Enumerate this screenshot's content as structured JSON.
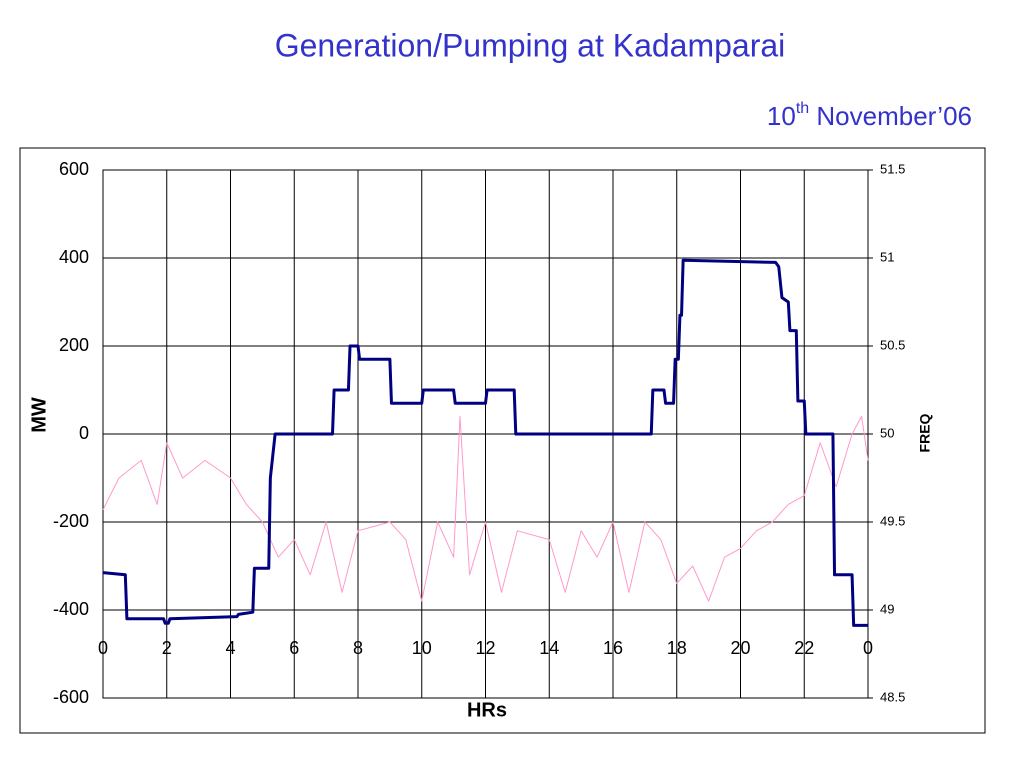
{
  "chart_data": {
    "type": "line",
    "title": "Generation/Pumping at Kadamparai",
    "subtitle": [
      "10",
      "th",
      " November’06"
    ],
    "xlabel": "HRs",
    "ylabel": "MW",
    "y2label": "FREQ",
    "xlim": [
      0,
      24
    ],
    "xticks": [
      0,
      2,
      4,
      6,
      8,
      10,
      12,
      14,
      16,
      18,
      20,
      22,
      {
        "value": 24,
        "label": "0"
      }
    ],
    "ylim": [
      -600,
      600
    ],
    "yticks": [
      -600,
      -400,
      -200,
      0,
      200,
      400,
      600
    ],
    "y2lim": [
      48.5,
      51.5
    ],
    "y2ticks": [
      48.5,
      49,
      49.5,
      50,
      50.5,
      51,
      51.5
    ],
    "grid": true,
    "series": [
      {
        "color": "#000080",
        "x": [
          0,
          0.7,
          0.75,
          1.9,
          1.95,
          2.05,
          2.1,
          4.2,
          4.25,
          4.7,
          4.75,
          5.2,
          5.25,
          5.4,
          7.2,
          7.25,
          7.7,
          7.75,
          8.0,
          8.05,
          9.0,
          9.05,
          10.0,
          10.05,
          11.0,
          11.05,
          12.0,
          12.05,
          12.9,
          12.95,
          17.2,
          17.25,
          17.6,
          17.65,
          17.9,
          17.95,
          18.05,
          18.1,
          18.15,
          18.2,
          21.1,
          21.2,
          21.3,
          21.5,
          21.55,
          21.75,
          21.8,
          22.0,
          22.05,
          22.9,
          22.95,
          23.5,
          23.55,
          24
        ],
        "values": [
          -315,
          -320,
          -420,
          -420,
          -430,
          -430,
          -420,
          -415,
          -410,
          -405,
          -305,
          -305,
          -100,
          0,
          0,
          100,
          100,
          200,
          200,
          170,
          170,
          70,
          70,
          100,
          100,
          70,
          70,
          100,
          100,
          0,
          0,
          100,
          100,
          70,
          70,
          170,
          170,
          270,
          270,
          395,
          390,
          380,
          310,
          300,
          235,
          235,
          75,
          75,
          0,
          0,
          -320,
          -320,
          -435,
          -435
        ]
      },
      {
        "color": "#ff99cc",
        "axis": "y2",
        "x": [
          0,
          0.5,
          1.2,
          1.7,
          2.0,
          2.5,
          3.2,
          4,
          4.5,
          5,
          5.5,
          6,
          6.5,
          7,
          7.5,
          8,
          9,
          9.5,
          10,
          10.5,
          11,
          11.2,
          11.5,
          12,
          12.5,
          13,
          14,
          14.5,
          15,
          15.5,
          16,
          16.5,
          17,
          17.5,
          18,
          18.5,
          19,
          19.5,
          20,
          20.5,
          21,
          21.5,
          22,
          22.5,
          23,
          23.5,
          23.8,
          24
        ],
        "values": [
          49.57,
          49.75,
          49.85,
          49.6,
          49.95,
          49.75,
          49.85,
          49.75,
          49.6,
          49.5,
          49.3,
          49.4,
          49.2,
          49.5,
          49.1,
          49.45,
          49.5,
          49.4,
          49.05,
          49.5,
          49.3,
          50.1,
          49.2,
          49.5,
          49.1,
          49.45,
          49.4,
          49.1,
          49.45,
          49.3,
          49.5,
          49.1,
          49.5,
          49.4,
          49.15,
          49.25,
          49.05,
          49.3,
          49.35,
          49.45,
          49.5,
          49.6,
          49.65,
          49.95,
          49.7,
          50.0,
          50.1,
          49.85
        ]
      }
    ]
  }
}
